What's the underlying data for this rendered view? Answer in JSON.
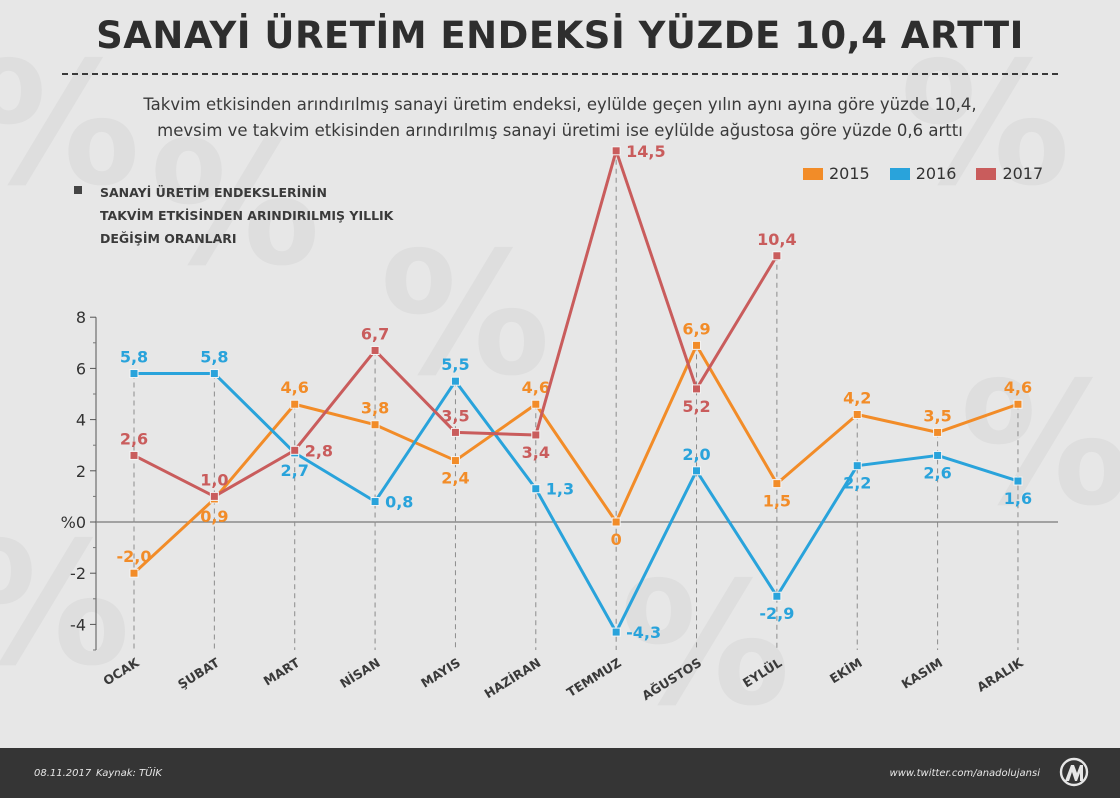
{
  "header": {
    "title": "SANAYİ ÜRETİM ENDEKSİ YÜZDE 10,4 ARTTI",
    "subtitle_line1": "Takvim etkisinden arındırılmış sanayi üretim endeksi, eylülde geçen yılın aynı ayına göre yüzde 10,4,",
    "subtitle_line2": "mevsim ve takvim etkisinden arındırılmış sanayi üretimi ise eylülde ağustosa göre yüzde 0,6 arttı"
  },
  "chart_description": {
    "line1": "SANAYİ ÜRETİM ENDEKSLERİNİN",
    "line2": "TAKVİM ETKİSİNDEN ARINDIRILMIŞ YILLIK",
    "line3": "DEĞİŞİM ORANLARI"
  },
  "footer": {
    "date": "08.11.2017",
    "source": "Kaynak: TÜİK",
    "link": "www.twitter.com/anadolujansi"
  },
  "colors": {
    "2015": "#f28c28",
    "2016": "#29a3db",
    "2017": "#c95c5c",
    "background": "#e7e7e7",
    "footer": "#353535"
  },
  "chart_data": {
    "type": "line",
    "categories": [
      "OCAK",
      "ŞUBAT",
      "MART",
      "NİSAN",
      "MAYIS",
      "HAZİRAN",
      "TEMMUZ",
      "AĞUSTOS",
      "EYLÜL",
      "EKİM",
      "KASIM",
      "ARALIK"
    ],
    "series": [
      {
        "name": "2015",
        "color": "#f28c28",
        "values": [
          -2.0,
          0.9,
          4.6,
          3.8,
          2.4,
          4.6,
          0,
          6.9,
          1.5,
          4.2,
          3.5,
          4.6
        ],
        "labels": [
          "-2,0",
          "0,9",
          "4,6",
          "3,8",
          "2,4",
          "4,6",
          "0",
          "6,9",
          "1,5",
          "4,2",
          "3,5",
          "4,6"
        ],
        "label_pos": [
          "above",
          "below",
          "above",
          "above",
          "below",
          "above",
          "below",
          "above",
          "below",
          "above",
          "above",
          "above"
        ]
      },
      {
        "name": "2016",
        "color": "#29a3db",
        "values": [
          5.8,
          5.8,
          2.7,
          0.8,
          5.5,
          1.3,
          -4.3,
          2.0,
          -2.9,
          2.2,
          2.6,
          1.6
        ],
        "labels": [
          "5,8",
          "5,8",
          "2,7",
          "0,8",
          "5,5",
          "1,3",
          "-4,3",
          "2,0",
          "-2,9",
          "2,2",
          "2,6",
          "1,6"
        ],
        "label_pos": [
          "above",
          "above",
          "below",
          "right",
          "above",
          "right",
          "right",
          "above",
          "below",
          "below",
          "below",
          "below"
        ]
      },
      {
        "name": "2017",
        "color": "#c95c5c",
        "values": [
          2.6,
          1.0,
          2.8,
          6.7,
          3.5,
          3.4,
          14.5,
          5.2,
          10.4,
          null,
          null,
          null
        ],
        "labels": [
          "2,6",
          "1,0",
          "2,8",
          "6,7",
          "3,5",
          "3,4",
          "14,5",
          "5,2",
          "10,4",
          "",
          "",
          ""
        ],
        "label_pos": [
          "above",
          "above",
          "right",
          "above",
          "above",
          "below",
          "right",
          "below",
          "above",
          "",
          "",
          ""
        ]
      }
    ],
    "yticks": [
      -4,
      -2,
      0,
      2,
      4,
      6,
      8
    ],
    "ytick_labels": [
      "-4",
      "-2",
      "%0",
      "2",
      "4",
      "6",
      "8"
    ],
    "ylim": [
      -5,
      8
    ],
    "grid": false,
    "legend_position": "top-right"
  }
}
